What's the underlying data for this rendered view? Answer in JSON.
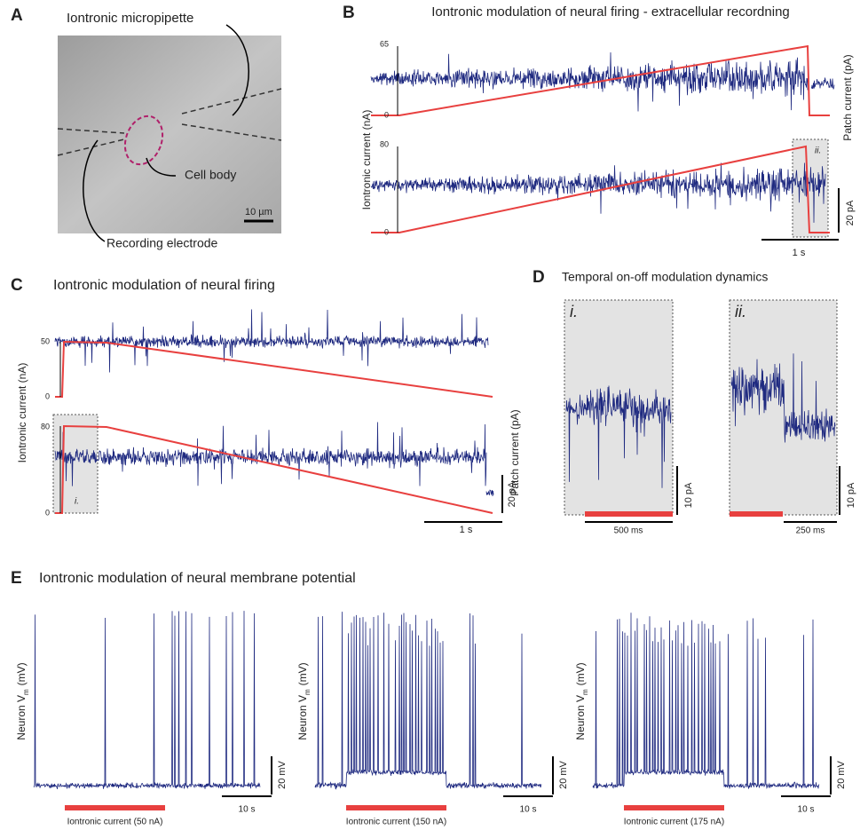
{
  "panel_a": {
    "label": "A",
    "micropipette": "Iontronic micropipette",
    "cell_body": "Cell body",
    "scale_bar": "10 µm",
    "electrode": "Recording electrode"
  },
  "panel_b": {
    "label": "B",
    "title": "Iontronic modulation of neural firing - extracellular recordning",
    "top_ticks": [
      "65",
      "0"
    ],
    "bottom_ticks": [
      "80",
      "0"
    ],
    "y_label": "Iontronic current (nA)",
    "y2_label": "Patch current (pA)",
    "inset": "ii.",
    "scale_y": "20 pA",
    "scale_x": "1 s"
  },
  "panel_c": {
    "label": "C",
    "title": "Iontronic modulation of neural firing",
    "top_ticks": [
      "50",
      "0"
    ],
    "bottom_ticks": [
      "80",
      "0"
    ],
    "y_label": "Iontronic current (nA)",
    "y2_label": "Patch current (pA)",
    "inset": "i.",
    "scale_y": "20 pA",
    "scale_x": "1 s"
  },
  "panel_d": {
    "label": "D",
    "title": "Temporal on-off modulation dynamics",
    "insets": [
      {
        "label": "i.",
        "scale_y": "10 pA",
        "scale_x": "500 ms"
      },
      {
        "label": "ii.",
        "scale_y": "10 pA",
        "scale_x": "250 ms"
      }
    ]
  },
  "panel_e": {
    "label": "E",
    "title": "Iontronic modulation of  neural membrane potential",
    "plots": [
      {
        "y_label": "Neuron V",
        "y_label_sub": "m",
        "y_label_unit": "(mV)",
        "scale_y": "20 mV",
        "scale_x": "10 s",
        "stimulus": "Iontronic current (50 nA)"
      },
      {
        "y_label": "Neuron V",
        "y_label_sub": "m",
        "y_label_unit": "(mV)",
        "scale_y": "20 mV",
        "scale_x": "10 s",
        "stimulus": "Iontronic current (150 nA)"
      },
      {
        "y_label": "Neuron V",
        "y_label_sub": "m",
        "y_label_unit": "(mV)",
        "scale_y": "20 mV",
        "scale_x": "10 s",
        "stimulus": "Iontronic current (175 nA)"
      }
    ]
  }
}
